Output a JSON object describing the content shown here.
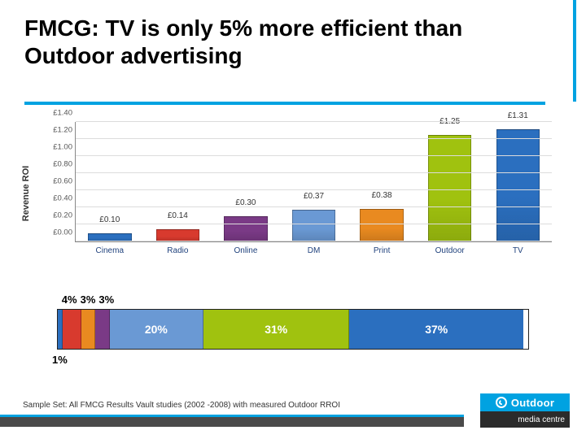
{
  "title": "FMCG: TV is only 5% more efficient than Outdoor advertising",
  "accent_color": "#00a2e1",
  "chart": {
    "type": "bar",
    "ylabel": "Revenue ROI",
    "ylim": [
      0,
      1.4
    ],
    "ytick_step": 0.2,
    "yticks": [
      "£0.00",
      "£0.20",
      "£0.40",
      "£0.60",
      "£0.80",
      "£1.00",
      "£1.20",
      "£1.40"
    ],
    "grid_color": "#dcdcdc",
    "axis_color": "#888888",
    "xtick_color": "#20427d",
    "label_fontsize": 10,
    "ylabel_fontsize": 11,
    "bars": [
      {
        "category": "Cinema",
        "value": 0.1,
        "label": "£0.10",
        "color": "#2b6fbf"
      },
      {
        "category": "Radio",
        "value": 0.14,
        "label": "£0.14",
        "color": "#d83a2e"
      },
      {
        "category": "Online",
        "value": 0.3,
        "label": "£0.30",
        "color": "#7a3a86"
      },
      {
        "category": "DM",
        "value": 0.37,
        "label": "£0.37",
        "color": "#6a99d4"
      },
      {
        "category": "Print",
        "value": 0.38,
        "label": "£0.38",
        "color": "#e98a20"
      },
      {
        "category": "Outdoor",
        "value": 1.25,
        "label": "£1.25",
        "color": "#a0c20f"
      },
      {
        "category": "TV",
        "value": 1.31,
        "label": "£1.31",
        "color": "#2b6fbf"
      }
    ]
  },
  "share": {
    "type": "stacked-bar",
    "segments": [
      {
        "pct": 1,
        "label": "1%",
        "color": "#2b6fbf",
        "label_pos": "below"
      },
      {
        "pct": 4,
        "label": "4%",
        "color": "#d83a2e",
        "label_pos": "above"
      },
      {
        "pct": 3,
        "label": "3%",
        "color": "#e98a20",
        "label_pos": "above"
      },
      {
        "pct": 3,
        "label": "3%",
        "color": "#7a3a86",
        "label_pos": "above"
      },
      {
        "pct": 20,
        "label": "20%",
        "color": "#6a99d4",
        "label_pos": "inside"
      },
      {
        "pct": 31,
        "label": "31%",
        "color": "#a0c20f",
        "label_pos": "inside"
      },
      {
        "pct": 37,
        "label": "37%",
        "color": "#2b6fbf",
        "label_pos": "inside"
      }
    ],
    "border_color": "#222222",
    "label_fontsize": 14
  },
  "footnote": "Sample Set: All FMCG Results Vault studies  (2002 -2008) with measured Outdoor RROI",
  "logo": {
    "top_text": "Outdoor",
    "bottom_text": "media centre",
    "brand_color": "#00a2e1"
  }
}
